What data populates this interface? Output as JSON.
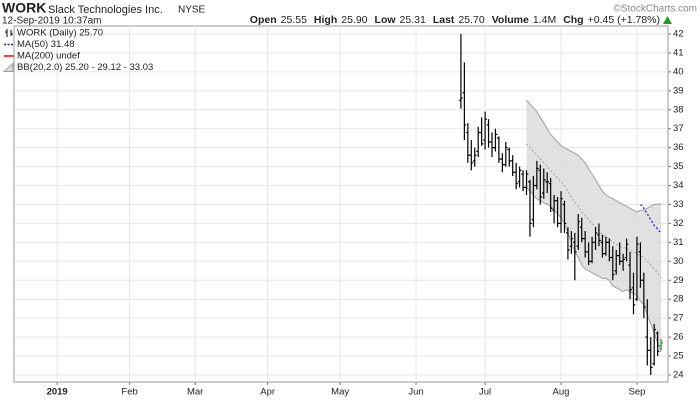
{
  "chart_data": {
    "type": "candlestick",
    "symbol": "WORK",
    "company": "Slack Technologies Inc.",
    "exchange": "NYSE",
    "timestamp": "12-Sep-2019 10:37am",
    "credit": "©StockCharts.com",
    "quote": [
      {
        "name": "Open",
        "value": "25.55"
      },
      {
        "name": "High",
        "value": "25.90"
      },
      {
        "name": "Low",
        "value": "25.31"
      },
      {
        "name": "Last",
        "value": "25.70"
      },
      {
        "name": "Volume",
        "value": "1.4M"
      },
      {
        "name": "Chg",
        "value": "+0.45 (+1.78%)"
      }
    ],
    "xlim": [
      -12.5,
      177
    ],
    "xticks": [
      {
        "value": 0,
        "label": "2019"
      },
      {
        "value": 21,
        "label": "Feb"
      },
      {
        "value": 40,
        "label": "Mar"
      },
      {
        "value": 61,
        "label": "Apr"
      },
      {
        "value": 82,
        "label": "May"
      },
      {
        "value": 104,
        "label": "Jun"
      },
      {
        "value": 124,
        "label": "Jul"
      },
      {
        "value": 146,
        "label": "Aug"
      },
      {
        "value": 168,
        "label": "Sep"
      }
    ],
    "ylim": [
      23.63,
      42.42
    ],
    "yticks": [
      24,
      25,
      26,
      27,
      28,
      29,
      30,
      31,
      32,
      33,
      34,
      35,
      36,
      37,
      38,
      39,
      40,
      41,
      42
    ],
    "grid": true,
    "x": [
      117,
      118,
      119,
      120,
      121,
      122,
      123,
      124,
      125,
      126,
      127,
      128,
      129,
      130,
      131,
      132,
      133,
      134,
      135,
      136,
      137,
      138,
      139,
      140,
      141,
      142,
      143,
      144,
      145,
      146,
      147,
      148,
      149,
      150,
      151,
      152,
      153,
      154,
      155,
      156,
      157,
      158,
      159,
      160,
      161,
      162,
      163,
      164,
      165,
      166,
      167,
      168,
      169,
      170,
      171,
      172,
      173,
      174,
      175
    ],
    "series": [
      {
        "name": "WORK (Daily) 25.70",
        "open": [
          38.5,
          38.9,
          36.8,
          35.6,
          35.3,
          35.8,
          36.8,
          36.4,
          37.2,
          36.3,
          36.0,
          36.5,
          35.4,
          35.1,
          35.9,
          35.3,
          34.7,
          34.2,
          34.6,
          33.9,
          34.2,
          32.2,
          34.0,
          34.8,
          33.6,
          34.2,
          34.1,
          32.7,
          33.2,
          32.0,
          33.0,
          31.5,
          30.8,
          31.0,
          30.8,
          31.8,
          31.2,
          30.5,
          30.0,
          31.0,
          31.4,
          31.0,
          30.4,
          31.0,
          30.2,
          29.5,
          30.3,
          30.0,
          30.2,
          29.8,
          28.6,
          28.0,
          30.5,
          29.0,
          26.0,
          25.3,
          24.6,
          26.2,
          25.55
        ],
        "high": [
          42.0,
          40.5,
          37.3,
          36.4,
          36.0,
          37.1,
          37.6,
          37.9,
          37.5,
          36.8,
          37.0,
          36.6,
          35.7,
          36.3,
          36.0,
          35.6,
          35.2,
          35.0,
          34.8,
          34.8,
          34.3,
          34.5,
          35.3,
          35.1,
          34.9,
          34.7,
          34.4,
          33.5,
          33.4,
          33.7,
          33.2,
          31.8,
          31.6,
          31.5,
          32.5,
          32.3,
          31.6,
          31.0,
          31.3,
          31.8,
          32.0,
          31.4,
          31.3,
          31.2,
          30.8,
          30.6,
          31.0,
          30.4,
          31.2,
          30.5,
          29.4,
          31.3,
          31.0,
          29.4,
          28.0,
          26.0,
          26.7,
          26.3,
          25.9
        ],
        "low": [
          38.05,
          36.4,
          35.2,
          34.8,
          35.0,
          35.5,
          36.1,
          35.9,
          36.0,
          35.5,
          35.8,
          35.2,
          34.7,
          35.0,
          35.0,
          34.5,
          33.8,
          33.9,
          33.7,
          33.5,
          31.3,
          31.8,
          33.8,
          33.0,
          33.3,
          33.6,
          32.6,
          32.0,
          31.8,
          31.5,
          31.5,
          30.1,
          30.4,
          29.0,
          30.6,
          31.0,
          30.2,
          29.8,
          29.9,
          30.6,
          30.8,
          30.2,
          30.3,
          30.0,
          29.0,
          29.3,
          29.8,
          29.5,
          30.0,
          28.0,
          27.2,
          27.9,
          28.6,
          27.0,
          24.5,
          24.0,
          24.5,
          25.0,
          25.31
        ],
        "close": [
          38.62,
          37.2,
          35.6,
          35.2,
          35.6,
          36.8,
          36.2,
          37.5,
          36.3,
          36.0,
          36.7,
          35.4,
          35.1,
          36.0,
          35.3,
          34.7,
          34.1,
          34.8,
          33.9,
          34.6,
          32.0,
          34.0,
          34.9,
          33.4,
          34.3,
          34.2,
          32.8,
          33.2,
          32.0,
          33.3,
          32.0,
          30.6,
          31.2,
          30.5,
          32.1,
          31.2,
          30.5,
          30.0,
          31.0,
          31.5,
          31.1,
          30.4,
          31.0,
          30.2,
          29.3,
          30.3,
          30.0,
          30.1,
          30.9,
          28.5,
          27.7,
          30.9,
          29.0,
          27.6,
          25.3,
          24.4,
          26.4,
          25.25,
          25.7
        ],
        "colors": [
          "#000000",
          "#000000",
          "#000000",
          "#000000",
          "#000000",
          "#000000",
          "#000000",
          "#000000",
          "#000000",
          "#000000",
          "#000000",
          "#000000",
          "#000000",
          "#000000",
          "#000000",
          "#000000",
          "#000000",
          "#000000",
          "#000000",
          "#000000",
          "#000000",
          "#000000",
          "#000000",
          "#000000",
          "#000000",
          "#000000",
          "#000000",
          "#000000",
          "#000000",
          "#000000",
          "#000000",
          "#000000",
          "#000000",
          "#000000",
          "#000000",
          "#000000",
          "#000000",
          "#000000",
          "#000000",
          "#000000",
          "#000000",
          "#000000",
          "#000000",
          "#000000",
          "#000000",
          "#000000",
          "#000000",
          "#000000",
          "#000000",
          "#000000",
          "#000000",
          "#000000",
          "#000000",
          "#000000",
          "#000000",
          "#000000",
          "#000000",
          "#000000",
          "#1e9e1e"
        ]
      },
      {
        "name": "MA(50) 31.48",
        "color": "#1c1ca8",
        "line_style": "dotted",
        "values": [
          null,
          null,
          null,
          null,
          null,
          null,
          null,
          null,
          null,
          null,
          null,
          null,
          null,
          null,
          null,
          null,
          null,
          null,
          null,
          null,
          null,
          null,
          null,
          null,
          null,
          null,
          null,
          null,
          null,
          null,
          null,
          null,
          null,
          null,
          null,
          null,
          null,
          null,
          null,
          null,
          null,
          null,
          null,
          null,
          null,
          null,
          null,
          null,
          null,
          null,
          null,
          null,
          33.0,
          32.8,
          32.5,
          32.2,
          31.9,
          31.7,
          31.48
        ]
      },
      {
        "name": "MA(200) undef",
        "color": "#ff0000",
        "line_style": "solid"
      },
      {
        "name": "BB(20,2.0) 25.20 - 29.12 - 33.03",
        "color": "#a0a0a0",
        "fill": "#dcdcdc",
        "upper": [
          null,
          null,
          null,
          null,
          null,
          null,
          null,
          null,
          null,
          null,
          null,
          null,
          null,
          null,
          null,
          null,
          null,
          null,
          null,
          38.5,
          38.3,
          38.1,
          37.9,
          37.6,
          37.3,
          37.0,
          36.7,
          36.5,
          36.3,
          36.1,
          36.0,
          35.9,
          35.8,
          35.7,
          35.6,
          35.4,
          35.2,
          34.9,
          34.6,
          34.3,
          34.0,
          33.7,
          33.5,
          33.4,
          33.3,
          33.2,
          33.1,
          33.0,
          32.9,
          32.8,
          32.7,
          32.6,
          32.7,
          32.7,
          32.8,
          32.9,
          33.0,
          33.02,
          33.03
        ],
        "middle": [
          null,
          null,
          null,
          null,
          null,
          null,
          null,
          null,
          null,
          null,
          null,
          null,
          null,
          null,
          null,
          null,
          null,
          null,
          null,
          36.2,
          36.0,
          35.8,
          35.6,
          35.4,
          35.2,
          35.0,
          34.8,
          34.6,
          34.4,
          34.2,
          34.0,
          33.7,
          33.4,
          33.1,
          32.9,
          32.6,
          32.4,
          32.2,
          32.0,
          31.8,
          31.6,
          31.4,
          31.3,
          31.2,
          31.0,
          30.9,
          30.8,
          30.7,
          30.7,
          30.6,
          30.5,
          30.4,
          30.3,
          30.2,
          30.0,
          29.8,
          29.6,
          29.4,
          29.12
        ],
        "lower": [
          null,
          null,
          null,
          null,
          null,
          null,
          null,
          null,
          null,
          null,
          null,
          null,
          null,
          null,
          null,
          null,
          null,
          null,
          null,
          33.9,
          33.7,
          33.5,
          33.3,
          33.2,
          33.1,
          33.0,
          32.9,
          32.7,
          32.5,
          32.3,
          32.0,
          31.5,
          31.0,
          30.5,
          30.2,
          29.8,
          29.6,
          29.5,
          29.4,
          29.3,
          29.2,
          29.1,
          29.1,
          29.0,
          28.7,
          28.6,
          28.5,
          28.4,
          28.5,
          28.4,
          28.3,
          28.2,
          27.9,
          27.7,
          27.2,
          26.7,
          26.2,
          25.7,
          25.2
        ]
      }
    ]
  }
}
